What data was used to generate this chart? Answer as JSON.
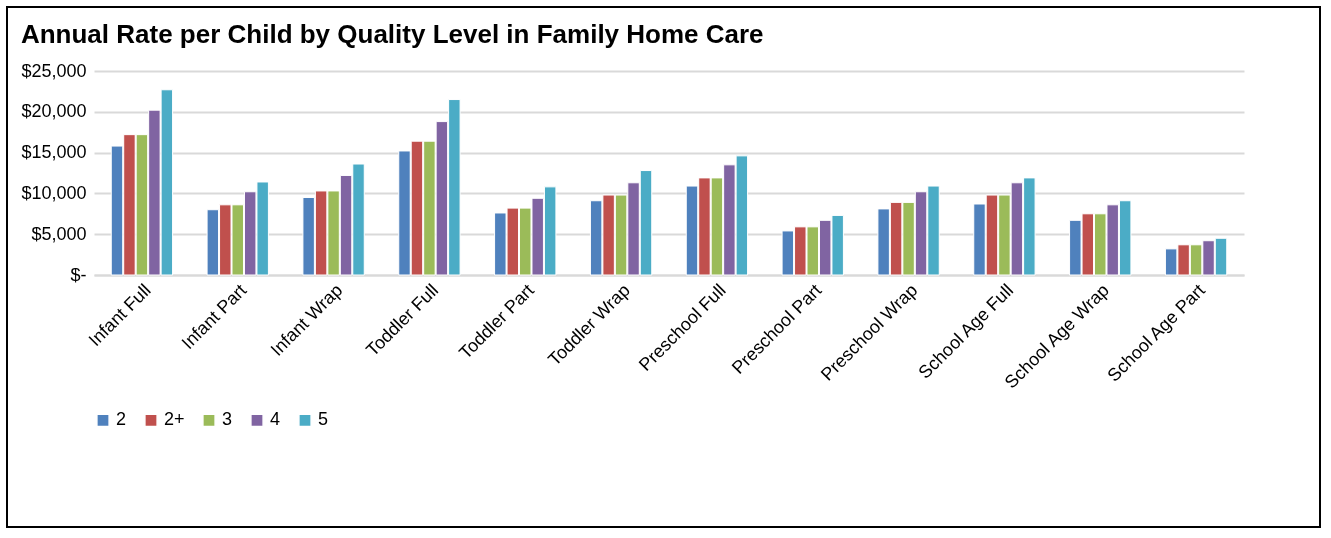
{
  "chart_data": {
    "type": "bar",
    "title": "Annual Rate per Child by Quality Level in Family Home Care",
    "categories": [
      "Infant Full",
      "Infant Part",
      "Infant Wrap",
      "Toddler Full",
      "Toddler Part",
      "Toddler Wrap",
      "Preschool Full",
      "Preschool Part",
      "Preschool Wrap",
      "School Age Full",
      "School Age Wrap",
      "School Age Part"
    ],
    "series": [
      {
        "name": "2",
        "color": "#4f81bd",
        "values": [
          15800,
          8000,
          9500,
          15200,
          7600,
          9100,
          10900,
          5400,
          8100,
          8700,
          6700,
          3200
        ]
      },
      {
        "name": "2+",
        "color": "#c0504d",
        "values": [
          17200,
          8600,
          10300,
          16400,
          8200,
          9800,
          11900,
          5900,
          8900,
          9800,
          7500,
          3700
        ]
      },
      {
        "name": "3",
        "color": "#9bbb59",
        "values": [
          17200,
          8600,
          10300,
          16400,
          8200,
          9800,
          11900,
          5900,
          8900,
          9800,
          7500,
          3700
        ]
      },
      {
        "name": "4",
        "color": "#8064a2",
        "values": [
          20200,
          10200,
          12200,
          18800,
          9400,
          11300,
          13500,
          6700,
          10200,
          11300,
          8600,
          4200
        ]
      },
      {
        "name": "5",
        "color": "#4bacc6",
        "values": [
          22700,
          11400,
          13600,
          21500,
          10800,
          12800,
          14600,
          7300,
          10900,
          11900,
          9100,
          4500
        ]
      }
    ],
    "ylim": [
      0,
      25000
    ],
    "yticks": [
      {
        "value": 0,
        "label": "$-"
      },
      {
        "value": 5000,
        "label": "$5,000"
      },
      {
        "value": 10000,
        "label": "$10,000"
      },
      {
        "value": 15000,
        "label": "$15,000"
      },
      {
        "value": 20000,
        "label": "$20,000"
      },
      {
        "value": 25000,
        "label": "$25,000"
      }
    ],
    "grid": "y",
    "legend": "bottom"
  }
}
